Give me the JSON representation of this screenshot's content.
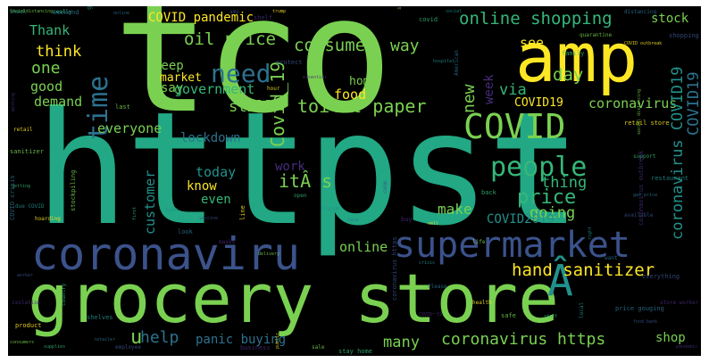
{
  "palette": {
    "background": "#000000",
    "yellow": "#fde725",
    "light_green": "#7ad151",
    "mint": "#35b779",
    "teal": "#22a884",
    "dark_teal": "#21918c",
    "blue": "#2c728e",
    "slate": "#3b528b",
    "purple": "#472d7b",
    "dark_purple": "#440154"
  },
  "words": {
    "tco": "tco",
    "httpst": "httpst",
    "amp": "amp",
    "grocery_store": "grocery store",
    "coronaviru": "coronaviru",
    "supermarket": "supermarket",
    "covid": "COVID",
    "people": "people",
    "need": "need",
    "time": "time",
    "a_hat": "Â",
    "covid_pandemic": "COVID pandemic",
    "online_shopping": "online shopping",
    "consumer": "consumer",
    "way": "way",
    "stock": "stock",
    "oil_price": "oil price",
    "covid_19": "Covid_19",
    "thank": "Thank",
    "think": "think",
    "one": "one",
    "good": "good",
    "demand": "demand",
    "keep": "keep",
    "market": "market",
    "say": "say",
    "government": "government",
    "home": "home",
    "food": "food",
    "new": "new",
    "week": "week",
    "via": "via",
    "day": "day",
    "see": "see",
    "covid19": "COVID19",
    "coronavirus": "coronavirus",
    "covid19_v": "COVID19",
    "coronavirus_covid19_v": "coronavirus COVID19",
    "still": "still",
    "toilet_paper": "toilet paper",
    "everyone": "everyone",
    "lockdown": "lockdown",
    "work": "work",
    "its": "itÂ s",
    "today": "today",
    "know": "know",
    "even": "even",
    "thing": "thing",
    "price": "price",
    "customer": "customer",
    "make": "make",
    "going": "going",
    "covid2019": "COVID2019",
    "online": "online",
    "hand_sanitizer": "hand sanitizer",
    "help": "help",
    "u": "u",
    "panic_buying": "panic buying",
    "many": "many",
    "coronavirus_https": "coronavirus https",
    "shop": "shop"
  },
  "small_words": [
    "Socialdistancing",
    "really",
    "going",
    "online",
    "amp",
    "shelf",
    "trump",
    "stock",
    "covid",
    "social",
    "distancing",
    "shopping online",
    "working",
    "retail",
    "sanitizer",
    "getting",
    "due COVID",
    "COVID crisis",
    "worker",
    "isolation",
    "product",
    "consumers",
    "country",
    "shelves",
    "retailer",
    "employee",
    "business",
    "public",
    "sale",
    "stay home",
    "crisis",
    "Please",
    "coronavirus https",
    "COVIDー19",
    "health",
    "safe",
    "staff",
    "local",
    "price gouging",
    "food bank",
    "store worker",
    "retail store",
    "social distancing",
    "support",
    "restaurant",
    "gas price",
    "available",
    "coronavirus outbreak",
    "COVID outbreak",
    "quarantine",
    "family",
    "hospital",
    "American",
    "protect",
    "essential",
    "hour",
    "last",
    "first",
    "take",
    "look",
    "vaccine",
    "masks",
    "line",
    "delivery",
    "open",
    "close",
    "care",
    "come",
    "buy",
    "sell",
    "life",
    "back",
    "right",
    "want",
    "everything",
    "pandemic",
    "hoarding",
    "stockpiling",
    "supplies",
    "check",
    "weekend"
  ]
}
